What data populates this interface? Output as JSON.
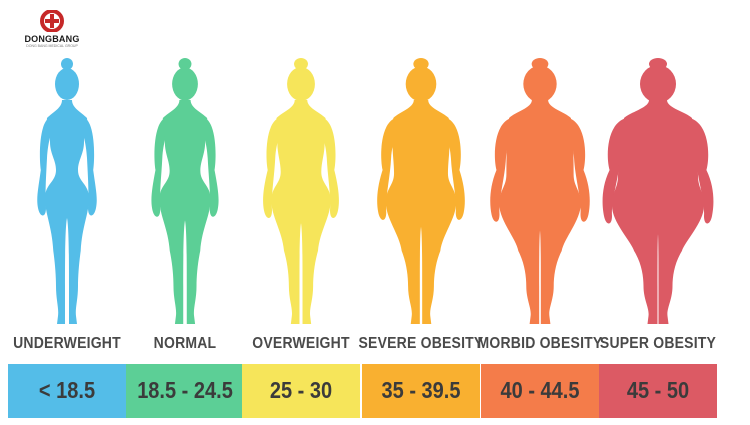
{
  "logo": {
    "name": "DONGBANG",
    "tagline": "DONG BANG MEDICAL GROUP",
    "mark_color": "#c62828"
  },
  "categories": [
    {
      "label": "UNDERWEIGHT",
      "range": "< 18.5",
      "color": "#54bde8",
      "build": 0.0
    },
    {
      "label": "NORMAL",
      "range": "18.5 - 24.5",
      "color": "#5ccf96",
      "build": 0.15
    },
    {
      "label": "OVERWEIGHT",
      "range": "25 - 30",
      "color": "#f6e55a",
      "build": 0.32
    },
    {
      "label": "SEVERE OBESITY",
      "range": "35 - 39.5",
      "color": "#f9b030",
      "build": 0.55
    },
    {
      "label": "MORBID OBESITY",
      "range": "40 - 44.5",
      "color": "#f47c4a",
      "build": 0.78
    },
    {
      "label": "SUPER OBESITY",
      "range": "45 - 50",
      "color": "#dc5a64",
      "build": 1.0
    }
  ]
}
